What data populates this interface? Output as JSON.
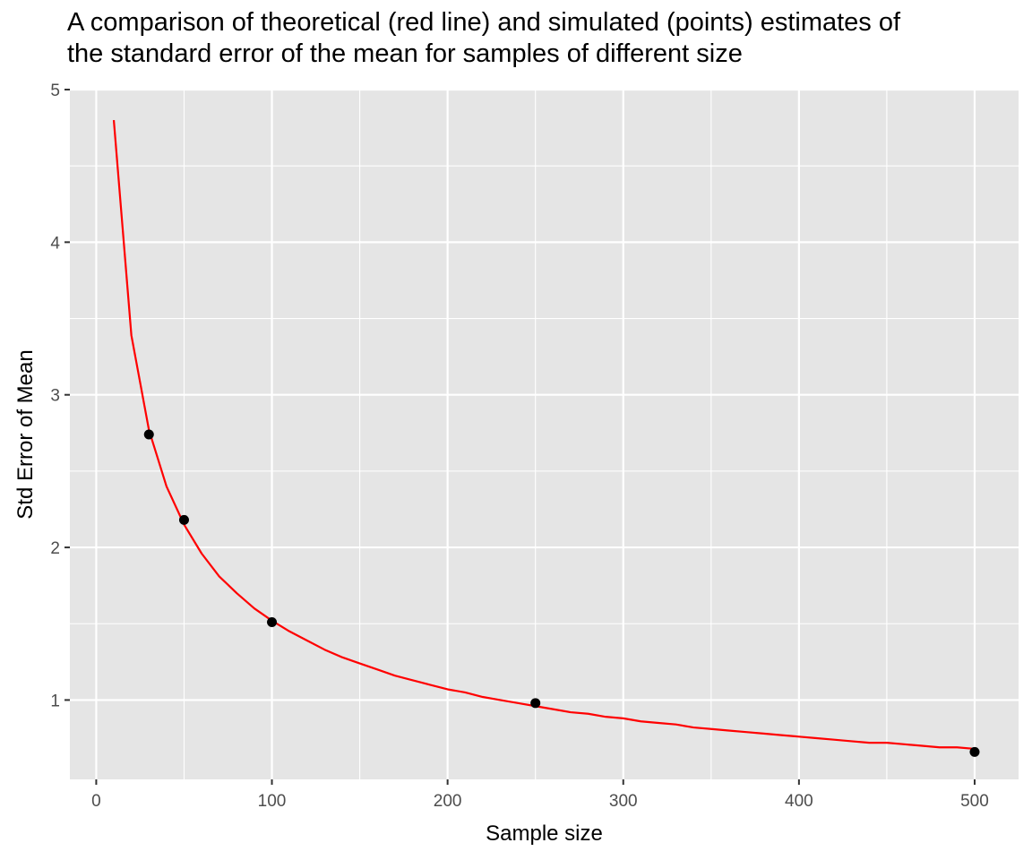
{
  "chart_data": {
    "type": "line",
    "title": [
      "A comparison of theoretical (red line) and simulated (points) estimates of",
      "the standard error of the mean for samples of different size"
    ],
    "xlabel": "Sample size",
    "ylabel": "Std Error of Mean",
    "xlim": [
      -15,
      525
    ],
    "ylim": [
      0.48,
      5.0
    ],
    "x_ticks": [
      0,
      100,
      200,
      300,
      400,
      500
    ],
    "y_ticks": [
      1,
      2,
      3,
      4,
      5
    ],
    "x_minor_ticks": [
      50,
      150,
      250,
      350,
      450
    ],
    "y_minor_ticks": [
      1.5,
      2.5,
      3.5,
      4.5
    ],
    "grid": true,
    "background_color": "#e5e5e5",
    "grid_color": "#ffffff",
    "series": [
      {
        "kind": "line",
        "color": "#ff0000",
        "x": [
          10,
          20,
          30,
          40,
          50,
          60,
          70,
          80,
          90,
          100,
          110,
          120,
          130,
          140,
          150,
          160,
          170,
          180,
          190,
          200,
          210,
          220,
          230,
          240,
          250,
          260,
          270,
          280,
          290,
          300,
          310,
          320,
          330,
          340,
          350,
          360,
          370,
          380,
          390,
          400,
          410,
          420,
          430,
          440,
          450,
          460,
          470,
          480,
          490,
          500
        ],
        "y": [
          4.8,
          3.39,
          2.77,
          2.4,
          2.15,
          1.96,
          1.81,
          1.7,
          1.6,
          1.52,
          1.45,
          1.39,
          1.33,
          1.28,
          1.24,
          1.2,
          1.16,
          1.13,
          1.1,
          1.07,
          1.05,
          1.02,
          1.0,
          0.98,
          0.96,
          0.94,
          0.92,
          0.91,
          0.89,
          0.88,
          0.86,
          0.85,
          0.84,
          0.82,
          0.81,
          0.8,
          0.79,
          0.78,
          0.77,
          0.76,
          0.75,
          0.74,
          0.73,
          0.72,
          0.72,
          0.71,
          0.7,
          0.69,
          0.69,
          0.68
        ]
      },
      {
        "kind": "points",
        "color": "#000000",
        "x": [
          30,
          50,
          100,
          250,
          500
        ],
        "y": [
          2.74,
          2.18,
          1.51,
          0.98,
          0.66
        ]
      }
    ]
  }
}
